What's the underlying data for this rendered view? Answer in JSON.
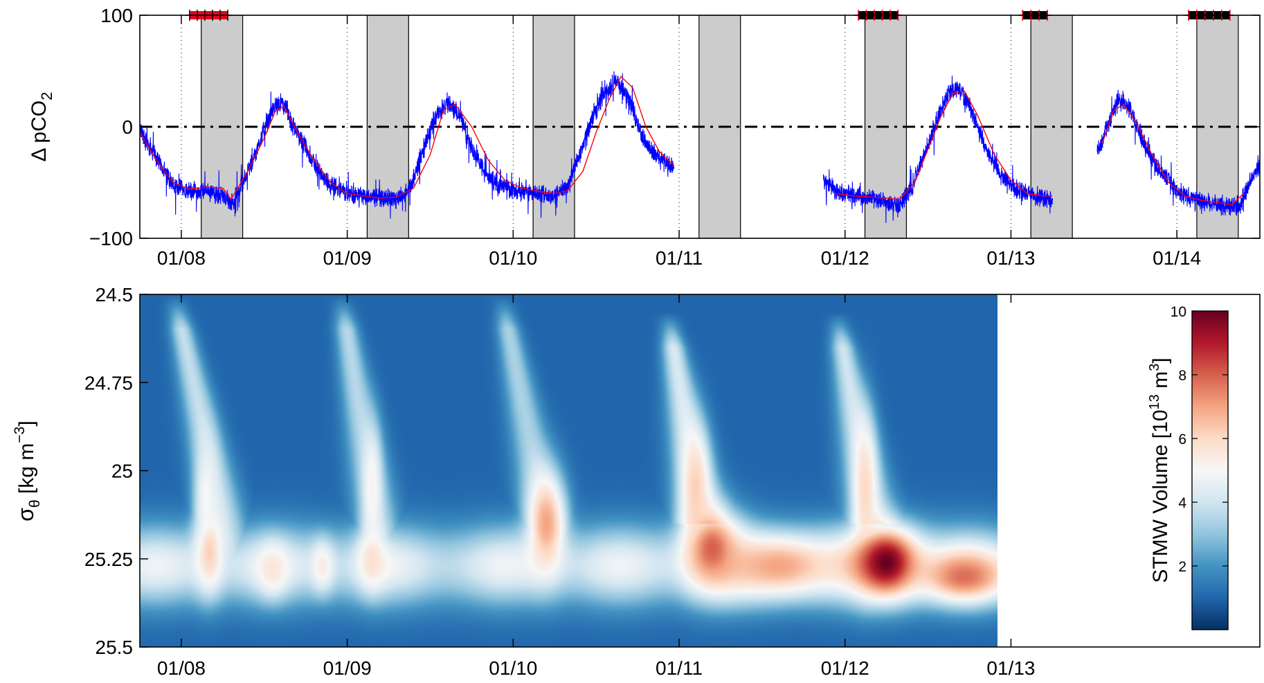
{
  "chart_data": [
    {
      "type": "line",
      "ylabel": "Δ pCO",
      "ylabel_subscript": "2",
      "yticks": [
        100,
        0,
        -100
      ],
      "ytick_labels": [
        "100",
        "0",
        "−100"
      ],
      "ylim": [
        -100,
        100
      ],
      "xlim_days": [
        7.75,
        14.5
      ],
      "xtick_days": [
        8,
        9,
        10,
        11,
        12,
        13,
        14
      ],
      "xtick_labels": [
        "01/08",
        "01/09",
        "01/10",
        "01/11",
        "01/12",
        "01/13",
        "01/14"
      ],
      "zero_line": {
        "y": 0,
        "style": "dash-dot",
        "color": "#000000"
      },
      "night_shading_days": [
        [
          8.12,
          8.37
        ],
        [
          9.12,
          9.37
        ],
        [
          10.12,
          10.37
        ],
        [
          11.12,
          11.37
        ],
        [
          12.12,
          12.37
        ],
        [
          13.12,
          13.37
        ],
        [
          14.12,
          14.37
        ]
      ],
      "night_shading_color": "#cccccc",
      "markers": [
        {
          "day_range": [
            8.05,
            8.28
          ],
          "color": "#e8001c"
        },
        {
          "day_range": [
            12.08,
            12.32
          ],
          "color": "#000000"
        },
        {
          "day_range": [
            13.07,
            13.22
          ],
          "color": "#000000"
        },
        {
          "day_range": [
            14.07,
            14.32
          ],
          "color": "#000000"
        }
      ],
      "series": [
        {
          "color": "#0000ff",
          "segments": [
            {
              "x": [
                7.75,
                7.8,
                7.88,
                7.95,
                8.05,
                8.15,
                8.25,
                8.3,
                8.38,
                8.48,
                8.55,
                8.6,
                8.68,
                8.78,
                8.88,
                9.0,
                9.1,
                9.2,
                9.3,
                9.38,
                9.45,
                9.52,
                9.6,
                9.68,
                9.75,
                9.85,
                9.95,
                10.05,
                10.15,
                10.25,
                10.32,
                10.4,
                10.48,
                10.55,
                10.62,
                10.7,
                10.78,
                10.85,
                10.97
              ],
              "y": [
                0,
                -15,
                -35,
                -52,
                -58,
                -58,
                -62,
                -70,
                -48,
                -10,
                15,
                22,
                0,
                -28,
                -50,
                -60,
                -62,
                -64,
                -65,
                -55,
                -25,
                5,
                22,
                10,
                -20,
                -45,
                -55,
                -58,
                -60,
                -62,
                -55,
                -25,
                10,
                30,
                40,
                25,
                -10,
                -25,
                -38
              ]
            },
            {
              "x": [
                11.87,
                11.95,
                12.05,
                12.15,
                12.25,
                12.32,
                12.4,
                12.48,
                12.55,
                12.62,
                12.68,
                12.75,
                12.85,
                12.95,
                13.05,
                13.15,
                13.25
              ],
              "y": [
                -48,
                -58,
                -62,
                -64,
                -68,
                -72,
                -55,
                -25,
                5,
                30,
                35,
                20,
                -20,
                -45,
                -58,
                -63,
                -65
              ]
            },
            {
              "x": [
                13.52,
                13.58,
                13.65,
                13.72,
                13.8,
                13.9,
                14.0,
                14.1,
                14.2,
                14.3,
                14.38,
                14.45,
                14.5
              ],
              "y": [
                -25,
                0,
                25,
                15,
                -15,
                -40,
                -58,
                -65,
                -68,
                -72,
                -70,
                -45,
                -35
              ]
            }
          ]
        },
        {
          "color": "#ff0000",
          "segments": [
            {
              "x": [
                7.75,
                7.85,
                7.95,
                8.05,
                8.15,
                8.25,
                8.3,
                8.4,
                8.5,
                8.57,
                8.62,
                8.7,
                8.8,
                8.9,
                9.0,
                9.1,
                9.2,
                9.3,
                9.4,
                9.5,
                9.58,
                9.65,
                9.75,
                9.85,
                9.95,
                10.05,
                10.15,
                10.25,
                10.33,
                10.42,
                10.5,
                10.58,
                10.65,
                10.72,
                10.8,
                10.88,
                10.97
              ],
              "y": [
                -5,
                -30,
                -50,
                -56,
                -54,
                -55,
                -65,
                -40,
                -10,
                15,
                18,
                -5,
                -30,
                -50,
                -60,
                -62,
                -64,
                -63,
                -55,
                -25,
                15,
                20,
                0,
                -30,
                -48,
                -55,
                -58,
                -60,
                -57,
                -40,
                -5,
                25,
                45,
                35,
                0,
                -22,
                -35
              ]
            },
            {
              "x": [
                11.95,
                12.05,
                12.15,
                12.25,
                12.33,
                12.42,
                12.5,
                12.58,
                12.65,
                12.72,
                12.8,
                12.9,
                13.0,
                13.1,
                13.2,
                13.25
              ],
              "y": [
                -60,
                -62,
                -63,
                -64,
                -65,
                -50,
                -20,
                10,
                30,
                32,
                10,
                -25,
                -48,
                -60,
                -62,
                -62
              ]
            },
            {
              "x": [
                13.55,
                13.62,
                13.68,
                13.75,
                13.85,
                13.95,
                14.05,
                14.15,
                14.25,
                14.33,
                14.4
              ],
              "y": [
                -15,
                15,
                20,
                5,
                -25,
                -50,
                -62,
                -66,
                -68,
                -70,
                -60
              ]
            }
          ]
        }
      ]
    },
    {
      "type": "heatmap",
      "ylabel": "σ",
      "ylabel_sub": "θ",
      "ylabel_rest": " [kg m",
      "ylabel_sup": "−3",
      "ylabel_end": "]",
      "yticks": [
        24.5,
        24.75,
        25,
        25.25,
        25.5
      ],
      "ytick_labels": [
        "24.5",
        "24.75",
        "25",
        "25.25",
        "25.5"
      ],
      "ylim": [
        24.5,
        25.5
      ],
      "y_reversed": true,
      "xlim_days": [
        7.75,
        14.5
      ],
      "data_xlim_days": [
        7.75,
        12.92
      ],
      "xtick_days": [
        8,
        9,
        10,
        11,
        12,
        13
      ],
      "xtick_labels": [
        "01/08",
        "01/09",
        "01/10",
        "01/11",
        "01/12",
        "01/13"
      ],
      "colorbar": {
        "label": "STMW Volume [10",
        "label_sup": "13",
        "label_mid": " m",
        "label_sup2": "3",
        "label_end": "]",
        "range": [
          0,
          10
        ],
        "ticks": [
          2,
          4,
          6,
          8,
          10
        ],
        "tick_labels": [
          "2",
          "4",
          "6",
          "8",
          "10"
        ],
        "colormap": [
          "#053061",
          "#2166ac",
          "#4393c3",
          "#92c5de",
          "#d1e5f0",
          "#f7f7f7",
          "#fddbc7",
          "#f4a582",
          "#d6604d",
          "#b2182b",
          "#67001f"
        ]
      },
      "background_value": 1.0,
      "band": {
        "center_sigma": 25.27,
        "width_sigma": 0.08,
        "value": 4.8
      },
      "blobs": [
        {
          "day": 8.17,
          "sigma": 25.23,
          "value": 6.2,
          "sd_day": 0.06,
          "sd_sigma": 0.08
        },
        {
          "day": 8.15,
          "sigma": 25.08,
          "value": 5.0,
          "sd_day": 0.05,
          "sd_sigma": 0.12
        },
        {
          "day": 8.55,
          "sigma": 25.28,
          "value": 5.6,
          "sd_day": 0.06,
          "sd_sigma": 0.05
        },
        {
          "day": 8.85,
          "sigma": 25.27,
          "value": 5.4,
          "sd_day": 0.05,
          "sd_sigma": 0.05
        },
        {
          "day": 9.15,
          "sigma": 25.25,
          "value": 5.8,
          "sd_day": 0.06,
          "sd_sigma": 0.06
        },
        {
          "day": 9.15,
          "sigma": 25.05,
          "value": 5.2,
          "sd_day": 0.04,
          "sd_sigma": 0.12
        },
        {
          "day": 10.2,
          "sigma": 25.15,
          "value": 7.0,
          "sd_day": 0.08,
          "sd_sigma": 0.1
        },
        {
          "day": 11.2,
          "sigma": 25.22,
          "value": 8.0,
          "sd_day": 0.12,
          "sd_sigma": 0.08
        },
        {
          "day": 11.1,
          "sigma": 25.05,
          "value": 6.2,
          "sd_day": 0.06,
          "sd_sigma": 0.12
        },
        {
          "day": 11.6,
          "sigma": 25.27,
          "value": 7.0,
          "sd_day": 0.25,
          "sd_sigma": 0.06
        },
        {
          "day": 12.25,
          "sigma": 25.26,
          "value": 10.0,
          "sd_day": 0.14,
          "sd_sigma": 0.07
        },
        {
          "day": 12.12,
          "sigma": 25.05,
          "value": 6.0,
          "sd_day": 0.05,
          "sd_sigma": 0.14
        },
        {
          "day": 12.72,
          "sigma": 25.3,
          "value": 7.8,
          "sd_day": 0.18,
          "sd_sigma": 0.05
        }
      ],
      "ridges": [
        {
          "day_top": 7.98,
          "day_bottom": 8.28,
          "sigma_top": 24.55,
          "sigma_bottom": 25.2,
          "value": 3.8
        },
        {
          "day_top": 8.98,
          "day_bottom": 9.2,
          "sigma_top": 24.55,
          "sigma_bottom": 25.2,
          "value": 3.6
        },
        {
          "day_top": 9.95,
          "day_bottom": 10.2,
          "sigma_top": 24.55,
          "sigma_bottom": 25.15,
          "value": 3.4
        },
        {
          "day_top": 10.95,
          "day_bottom": 11.12,
          "sigma_top": 24.6,
          "sigma_bottom": 25.1,
          "value": 4.2
        },
        {
          "day_top": 11.97,
          "day_bottom": 12.15,
          "sigma_top": 24.6,
          "sigma_bottom": 25.1,
          "value": 4.0
        }
      ]
    }
  ]
}
